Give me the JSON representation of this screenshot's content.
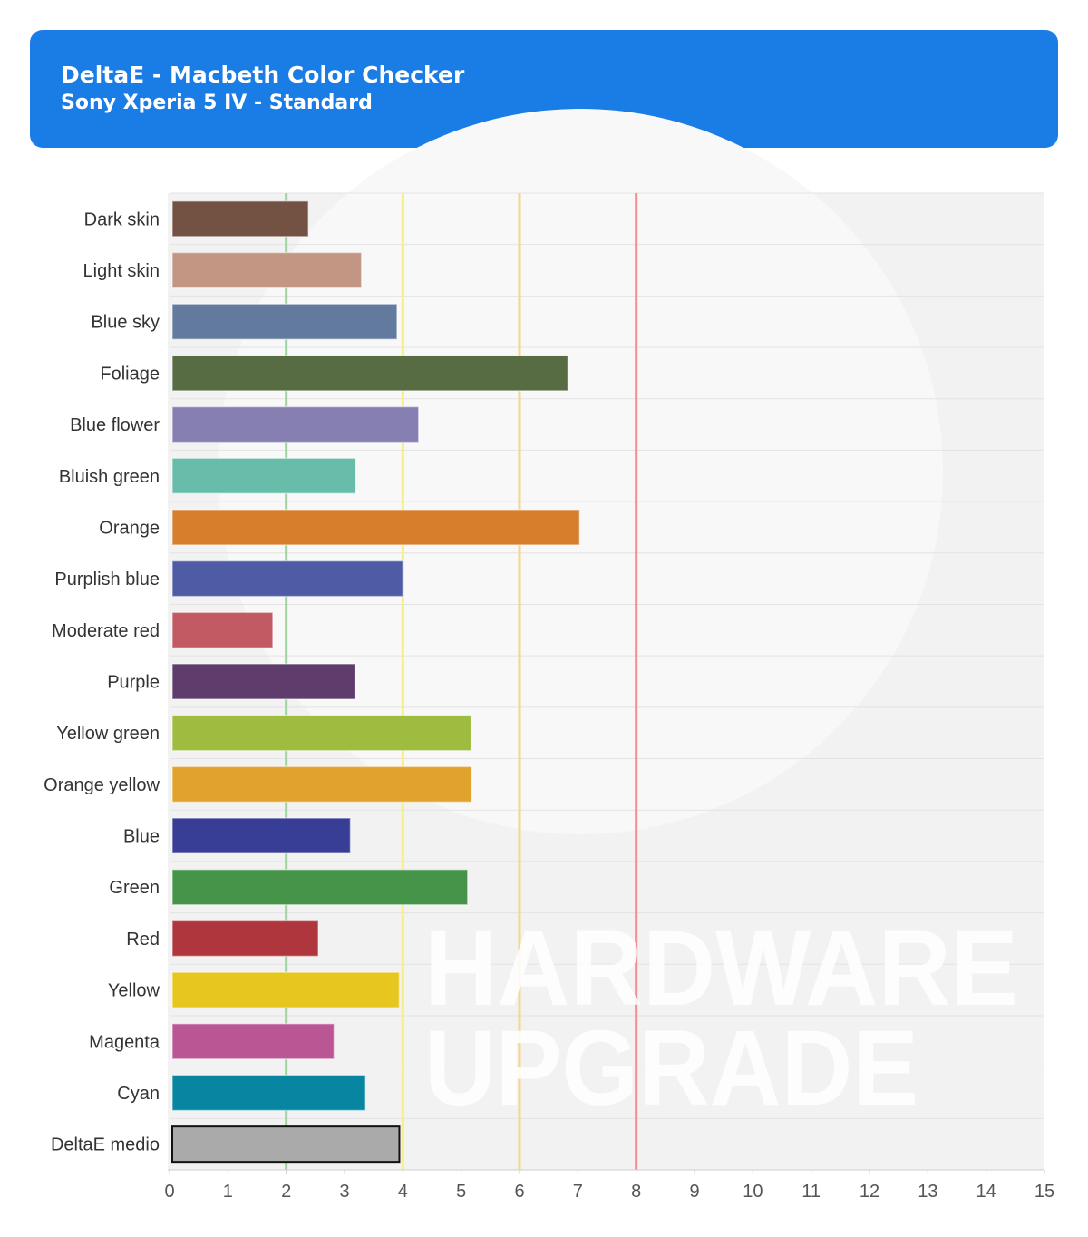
{
  "header": {
    "title": "DeltaE - Macbeth Color Checker",
    "subtitle": "Sony Xperia 5 IV - Standard"
  },
  "watermark": {
    "line1": "HARDWARE",
    "line2": "UPGRADE"
  },
  "chart_data": {
    "type": "bar",
    "orientation": "horizontal",
    "title": "DeltaE - Macbeth Color Checker",
    "subtitle": "Sony Xperia 5 IV - Standard",
    "categories": [
      "Dark skin",
      "Light skin",
      "Blue sky",
      "Foliage",
      "Blue flower",
      "Bluish green",
      "Orange",
      "Purplish blue",
      "Moderate red",
      "Purple",
      "Yellow green",
      "Orange yellow",
      "Blue",
      "Green",
      "Red",
      "Yellow",
      "Magenta",
      "Cyan",
      "DeltaE medio"
    ],
    "values": [
      2.38,
      3.29,
      3.9,
      6.83,
      4.27,
      3.19,
      7.03,
      4.0,
      1.77,
      3.18,
      5.17,
      5.18,
      3.1,
      5.11,
      2.55,
      3.94,
      2.82,
      3.36,
      3.94
    ],
    "colors": [
      "#735244",
      "#c29682",
      "#627a9d",
      "#576c43",
      "#8580b1",
      "#67bdaa",
      "#d67e2c",
      "#505ba6",
      "#c15a63",
      "#5e3c6c",
      "#9dbc40",
      "#e0a32e",
      "#383d96",
      "#469449",
      "#af363c",
      "#e7c71f",
      "#bb5695",
      "#0885a1",
      "#aaaaaa"
    ],
    "highlight_category": "DeltaE medio",
    "xlim": [
      0,
      15
    ],
    "xticks": [
      0,
      1,
      2,
      3,
      4,
      5,
      6,
      7,
      8,
      9,
      10,
      11,
      12,
      13,
      14,
      15
    ],
    "reference_lines": [
      {
        "x": 2,
        "color": "#9fd49f"
      },
      {
        "x": 4,
        "color": "#f7ee8a"
      },
      {
        "x": 6,
        "color": "#f6d58c"
      },
      {
        "x": 8,
        "color": "#f58e8e"
      }
    ],
    "xlabel": "",
    "ylabel": "",
    "grid": true
  }
}
